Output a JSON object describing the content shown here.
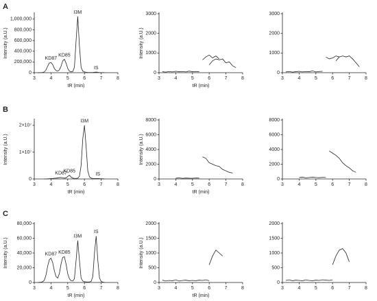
{
  "panel_labels": [
    "A",
    "B",
    "C"
  ],
  "chart_data": [
    {
      "type": "line",
      "xlabel": "tR (min)",
      "ylabel": "Intensity (a.U.)",
      "color": "#222222",
      "xlim": [
        3,
        8
      ],
      "xticks": [
        3,
        4,
        5,
        6,
        7,
        8
      ],
      "ylim": [
        0,
        1100000
      ],
      "yticks": [
        0,
        {
          "value": 200000,
          "label": "200,000"
        },
        {
          "value": 400000,
          "label": "400,000"
        },
        {
          "value": 600000,
          "label": "600,000"
        },
        {
          "value": 800000,
          "label": "800,000"
        },
        {
          "value": 1000000,
          "label": "1,000,000"
        }
      ],
      "x": [
        3.2,
        3.3,
        3.4,
        3.5,
        3.6,
        3.7,
        3.8,
        3.9,
        4.0,
        4.1,
        4.2,
        4.3,
        4.4,
        4.5,
        4.6,
        4.7,
        4.8,
        4.9,
        5.0,
        5.1,
        5.2,
        5.3,
        5.4,
        5.5,
        5.6,
        5.7,
        5.8,
        5.9,
        6.0,
        6.1,
        6.2,
        6.3,
        6.4,
        6.5,
        6.6,
        6.7,
        6.8,
        6.9,
        7.0,
        7.1,
        7.2
      ],
      "series": [
        {
          "values": [
            0,
            0,
            2000,
            5000,
            15000,
            50000,
            120000,
            180000,
            190000,
            150000,
            80000,
            40000,
            30000,
            50000,
            120000,
            220000,
            250000,
            180000,
            80000,
            30000,
            15000,
            20000,
            100000,
            600000,
            1050000,
            500000,
            100000,
            30000,
            15000,
            8000,
            5000,
            3000,
            3000,
            4000,
            8000,
            12000,
            6000,
            3000,
            2000,
            1000,
            1000
          ]
        }
      ],
      "annotations": [
        {
          "text": "KD87",
          "x": 4.0,
          "y": 190000
        },
        {
          "text": "KD85",
          "x": 4.8,
          "y": 250000
        },
        {
          "text": "I3M",
          "x": 5.6,
          "y": 1050000
        },
        {
          "text": "IS",
          "x": 6.7,
          "y": 12000
        }
      ]
    },
    {
      "type": "line",
      "xlabel": "tR (min)",
      "ylabel": "Intensity (a.U.)",
      "color": "#222222",
      "xlim": [
        3,
        8
      ],
      "xticks": [
        3,
        4,
        5,
        6,
        7,
        8
      ],
      "ylim": [
        0,
        3000
      ],
      "yticks": [
        0,
        1000,
        2000,
        3000
      ],
      "x": [
        3.2,
        3.4,
        3.6,
        3.8,
        4.0,
        4.2,
        4.4,
        4.6,
        4.8,
        5.0,
        5.2,
        5.4,
        5.6,
        5.8,
        6.0,
        6.2,
        6.4,
        6.6,
        6.8,
        7.0,
        7.2,
        7.4,
        7.6
      ],
      "series": [
        {
          "values": [
            50,
            30,
            60,
            40,
            70,
            50,
            60,
            40,
            80,
            50,
            60,
            50,
            null,
            null,
            null,
            null,
            null,
            null,
            null,
            null,
            null,
            null,
            null
          ]
        },
        {
          "values": [
            null,
            null,
            null,
            null,
            null,
            null,
            null,
            null,
            null,
            null,
            null,
            null,
            650,
            800,
            900,
            750,
            850,
            700,
            null,
            null,
            null,
            null,
            null
          ]
        },
        {
          "values": [
            null,
            null,
            null,
            null,
            null,
            null,
            null,
            null,
            null,
            null,
            null,
            null,
            null,
            null,
            400,
            600,
            700,
            650,
            700,
            500,
            550,
            350,
            250
          ]
        }
      ]
    },
    {
      "type": "line",
      "color": "#222222",
      "xlim": [
        3,
        8
      ],
      "xticks": [
        3,
        4,
        5,
        6,
        7,
        8
      ],
      "ylim": [
        0,
        3000
      ],
      "yticks": [
        0,
        1000,
        2000,
        3000
      ],
      "x": [
        3.2,
        3.4,
        3.6,
        3.8,
        4.0,
        4.2,
        4.4,
        4.6,
        4.8,
        5.0,
        5.2,
        5.4,
        5.6,
        5.8,
        6.0,
        6.2,
        6.4,
        6.6,
        6.8,
        7.0,
        7.2,
        7.4,
        7.6
      ],
      "series": [
        {
          "values": [
            40,
            60,
            30,
            50,
            70,
            40,
            60,
            50,
            90,
            40,
            60,
            70,
            null,
            null,
            null,
            null,
            null,
            null,
            null,
            null,
            null,
            null,
            null
          ]
        },
        {
          "values": [
            null,
            null,
            null,
            null,
            null,
            null,
            null,
            null,
            null,
            null,
            null,
            null,
            800,
            700,
            750,
            850,
            800,
            null,
            null,
            null,
            null,
            null,
            null
          ]
        },
        {
          "values": [
            null,
            null,
            null,
            null,
            null,
            null,
            null,
            null,
            null,
            null,
            null,
            null,
            null,
            null,
            null,
            600,
            800,
            850,
            800,
            850,
            700,
            500,
            300
          ]
        }
      ]
    },
    {
      "type": "line",
      "ylabel": "Intensity (a.U.)",
      "xlabel": "tR (min)",
      "color": "#222222",
      "xlim": [
        3,
        8
      ],
      "xticks": [
        3,
        4,
        5,
        6,
        7,
        8
      ],
      "ylim": [
        0,
        22000000
      ],
      "yticks": [
        0,
        {
          "value": 10000000,
          "label": "1×10⁷"
        },
        {
          "value": 20000000,
          "label": "2×10⁷"
        }
      ],
      "x": [
        3.6,
        3.7,
        3.8,
        3.9,
        4.0,
        4.1,
        4.2,
        4.3,
        4.4,
        4.5,
        4.6,
        4.7,
        4.8,
        4.9,
        5.0,
        5.1,
        5.2,
        5.3,
        5.4,
        5.5,
        5.6,
        5.7,
        5.8,
        5.9,
        6.0,
        6.1,
        6.2,
        6.3,
        6.4,
        6.5,
        6.6,
        6.7,
        6.8,
        6.9,
        7.0,
        7.1,
        7.2
      ],
      "series": [
        {
          "values": [
            0,
            0,
            50000,
            100000,
            150000,
            200000,
            250000,
            300000,
            400000,
            500000,
            550000,
            450000,
            300000,
            400000,
            900000,
            1400000,
            700000,
            300000,
            200000,
            200000,
            300000,
            1000000,
            5000000,
            15000000,
            20000000,
            12000000,
            3000000,
            800000,
            300000,
            200000,
            150000,
            150000,
            200000,
            120000,
            80000,
            50000,
            30000
          ]
        }
      ],
      "annotations": [
        {
          "text": "KD87",
          "x": 4.6,
          "y": 550000
        },
        {
          "text": "KD85",
          "x": 5.1,
          "y": 1400000
        },
        {
          "text": "I3M",
          "x": 6.0,
          "y": 20000000
        },
        {
          "text": "IS",
          "x": 6.8,
          "y": 200000
        }
      ]
    },
    {
      "type": "line",
      "xlabel": "tR (min)",
      "ylabel": "Intensity (a.U.)",
      "color": "#222222",
      "xlim": [
        3,
        8
      ],
      "xticks": [
        3,
        4,
        5,
        6,
        7,
        8
      ],
      "ylim": [
        0,
        8000
      ],
      "yticks": [
        0,
        2000,
        4000,
        6000,
        8000
      ],
      "x": [
        3.2,
        3.4,
        3.6,
        3.8,
        4.0,
        4.2,
        4.4,
        4.6,
        4.8,
        5.0,
        5.2,
        5.4,
        5.6,
        5.8,
        6.0,
        6.2,
        6.4,
        6.6,
        6.8,
        7.0,
        7.2,
        7.4,
        7.6
      ],
      "series": [
        {
          "values": [
            null,
            null,
            null,
            null,
            100,
            150,
            80,
            120,
            100,
            90,
            130,
            110,
            null,
            null,
            null,
            null,
            null,
            null,
            null,
            null,
            null,
            null,
            null
          ]
        },
        {
          "values": [
            null,
            null,
            null,
            null,
            null,
            null,
            null,
            null,
            null,
            null,
            null,
            null,
            3000,
            2800,
            2200,
            2000,
            1800,
            1700,
            1300,
            1100,
            900,
            800,
            null
          ]
        }
      ]
    },
    {
      "type": "line",
      "color": "#222222",
      "xlim": [
        3,
        8
      ],
      "xticks": [
        3,
        4,
        5,
        6,
        7,
        8
      ],
      "ylim": [
        0,
        8000
      ],
      "yticks": [
        0,
        2000,
        4000,
        6000,
        8000
      ],
      "x": [
        3.2,
        3.4,
        3.6,
        3.8,
        4.0,
        4.2,
        4.4,
        4.6,
        4.8,
        5.0,
        5.2,
        5.4,
        5.6,
        5.8,
        6.0,
        6.2,
        6.4,
        6.6,
        6.8,
        7.0,
        7.2,
        7.4,
        7.6
      ],
      "series": [
        {
          "values": [
            null,
            null,
            null,
            null,
            200,
            250,
            150,
            200,
            250,
            200,
            180,
            220,
            200,
            null,
            null,
            null,
            null,
            null,
            null,
            null,
            null,
            null,
            null
          ]
        },
        {
          "values": [
            null,
            null,
            null,
            null,
            null,
            null,
            null,
            null,
            null,
            null,
            null,
            null,
            null,
            3800,
            3500,
            3200,
            2800,
            2200,
            1800,
            1500,
            1100,
            900,
            null
          ]
        }
      ]
    },
    {
      "type": "line",
      "ylabel": "Intensity (a.U.)",
      "xlabel": "tR (min)",
      "color": "#222222",
      "xlim": [
        3,
        8
      ],
      "xticks": [
        3,
        4,
        5,
        6,
        7,
        8
      ],
      "ylim": [
        0,
        80000
      ],
      "yticks": [
        0,
        {
          "value": 20000,
          "label": "20,000"
        },
        {
          "value": 40000,
          "label": "40,000"
        },
        {
          "value": 60000,
          "label": "60,000"
        },
        {
          "value": 80000,
          "label": "80,000"
        }
      ],
      "x": [
        3.2,
        3.3,
        3.4,
        3.5,
        3.6,
        3.7,
        3.8,
        3.9,
        4.0,
        4.1,
        4.2,
        4.3,
        4.4,
        4.5,
        4.6,
        4.7,
        4.8,
        4.9,
        5.0,
        5.1,
        5.2,
        5.3,
        5.4,
        5.5,
        5.6,
        5.7,
        5.8,
        5.9,
        6.0,
        6.1,
        6.2,
        6.3,
        6.4,
        6.5,
        6.6,
        6.7,
        6.8,
        6.9,
        7.0,
        7.1,
        7.2
      ],
      "series": [
        {
          "values": [
            0,
            200,
            500,
            1000,
            3000,
            10000,
            22000,
            31000,
            33000,
            27000,
            16000,
            8000,
            6000,
            12000,
            25000,
            34000,
            35000,
            25000,
            12000,
            5000,
            2500,
            2000,
            5000,
            30000,
            57000,
            30000,
            6000,
            2000,
            1000,
            800,
            700,
            800,
            1500,
            8000,
            40000,
            63000,
            30000,
            6000,
            1500,
            500,
            200
          ]
        }
      ],
      "annotations": [
        {
          "text": "KD87",
          "x": 4.0,
          "y": 33000
        },
        {
          "text": "KD85",
          "x": 4.8,
          "y": 35000
        },
        {
          "text": "I3M",
          "x": 5.6,
          "y": 57000
        },
        {
          "text": "IS",
          "x": 6.7,
          "y": 63000
        }
      ]
    },
    {
      "type": "line",
      "xlabel": "tR (min)",
      "ylabel": "Intensity (a.U.)",
      "color": "#222222",
      "xlim": [
        3,
        8
      ],
      "xticks": [
        3,
        4,
        5,
        6,
        7,
        8
      ],
      "ylim": [
        0,
        2000
      ],
      "yticks": [
        0,
        500,
        1000,
        1500,
        2000
      ],
      "x": [
        3.2,
        3.4,
        3.6,
        3.8,
        4.0,
        4.2,
        4.4,
        4.6,
        4.8,
        5.0,
        5.2,
        5.4,
        5.6,
        5.8,
        6.0,
        6.2,
        6.4,
        6.6,
        6.8,
        7.0,
        7.2,
        7.4,
        7.6
      ],
      "series": [
        {
          "values": [
            80,
            50,
            70,
            60,
            90,
            50,
            70,
            80,
            60,
            70,
            60,
            80,
            70,
            90,
            60,
            null,
            null,
            null,
            null,
            null,
            null,
            null,
            null
          ]
        },
        {
          "values": [
            null,
            null,
            null,
            null,
            null,
            null,
            null,
            null,
            null,
            null,
            null,
            null,
            null,
            null,
            600,
            900,
            1100,
            1000,
            900,
            null,
            null,
            null,
            null
          ]
        }
      ]
    },
    {
      "type": "line",
      "color": "#222222",
      "xlim": [
        3,
        8
      ],
      "xticks": [
        3,
        4,
        5,
        6,
        7,
        8
      ],
      "ylim": [
        0,
        2000
      ],
      "yticks": [
        0,
        500,
        1000,
        1500,
        2000
      ],
      "x": [
        3.2,
        3.4,
        3.6,
        3.8,
        4.0,
        4.2,
        4.4,
        4.6,
        4.8,
        5.0,
        5.2,
        5.4,
        5.6,
        5.8,
        6.0,
        6.2,
        6.4,
        6.6,
        6.8,
        7.0,
        7.2,
        7.4,
        7.6
      ],
      "series": [
        {
          "values": [
            70,
            90,
            60,
            80,
            70,
            60,
            90,
            70,
            60,
            80,
            70,
            90,
            80,
            70,
            90,
            null,
            null,
            null,
            null,
            null,
            null,
            null,
            null
          ]
        },
        {
          "values": [
            null,
            null,
            null,
            null,
            null,
            null,
            null,
            null,
            null,
            null,
            null,
            null,
            null,
            null,
            600,
            900,
            1100,
            1150,
            1000,
            700,
            null,
            null,
            null
          ]
        }
      ]
    }
  ]
}
